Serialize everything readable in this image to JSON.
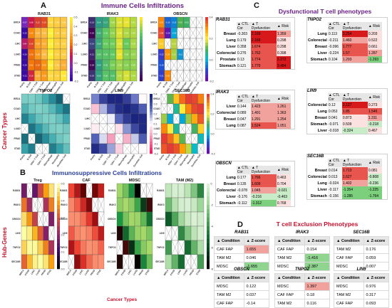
{
  "labels": {
    "A": "A",
    "B": "B",
    "C": "C",
    "D": "D",
    "immune_title": "Immune Cells Infiltrations",
    "immunosuppressive_title": "Immunosuppressive Cells Infiltrations",
    "dysfunctional_title": "Dysfunctional T cell phenotypes",
    "exclusion_title": "T cell Exclusion Phenotypes",
    "cancer_types_side": "Cancer Types",
    "hub_genes_side": "Hub-Genes",
    "cancer_types_bottom": "Cancer Types"
  },
  "colors": {
    "accent_red": "#c8102e",
    "title_blue": "#2a3f9a",
    "title_purple": "#6a1f8a",
    "cell_red": "#e3262a",
    "cell_green": "#7ccf7c",
    "header_gray": "#e6e6e6"
  },
  "chart_data": [
    {
      "type": "heatmap",
      "title": "RAB31",
      "rows": [
        "BRCA",
        "COAD",
        "LIHC",
        "LUAD",
        "PRAD",
        "STAD"
      ],
      "cols": [
        "Purity",
        "B Cell",
        "CD8+ T Cell",
        "CD4+ T Cell",
        "Macrophage",
        "Neutrophil",
        "Dendritic Cell"
      ],
      "values": [
        [
          -0.07,
          0.08,
          0.13,
          0.15,
          0.43,
          0.4,
          0.38
        ],
        [
          -0.25,
          0.24,
          0.33,
          0.35,
          0.51,
          0.4,
          0.4
        ],
        [
          0.04,
          0.14,
          0.29,
          0.32,
          0.55,
          0.41,
          0.41
        ],
        [
          -0.2,
          0.2,
          0.28,
          0.35,
          0.5,
          0.41,
          0.4
        ],
        [
          -0.25,
          0.21,
          0.19,
          0.26,
          0.5,
          0.38,
          0.32
        ],
        [
          -0.21,
          0.1,
          0.32,
          0.28,
          0.44,
          0.41,
          0.48
        ]
      ],
      "colorscale": "plasma-warm",
      "ticks": [
        "0.5",
        "0.4",
        "0.3",
        "0.2",
        "0.1",
        "0.0",
        "-0.1",
        "-0.2"
      ]
    },
    {
      "type": "heatmap",
      "title": "IRAK3",
      "rows": [
        "BRCA",
        "COAD",
        "LIHC",
        "LUAD",
        "PRAD",
        "STAD"
      ],
      "cols": [
        "Purity",
        "B Cell",
        "CD8+ T Cell",
        "CD4+ T Cell",
        "Macrophage",
        "Neutrophil",
        "Dendritic Cell"
      ],
      "values": [
        [
          -0.19,
          0.14,
          0.17,
          0.38,
          0.46,
          0.47,
          0.41
        ],
        [
          -0.3,
          0.2,
          0.3,
          0.36,
          0.46,
          0.4,
          0.4
        ],
        [
          -0.14,
          0.18,
          0.31,
          0.32,
          0.46,
          0.31,
          0.39
        ],
        [
          -0.21,
          0.26,
          0.28,
          0.3,
          0.47,
          0.35,
          0.37
        ],
        [
          -0.28,
          0.15,
          0.26,
          0.33,
          0.38,
          0.35,
          0.36
        ],
        [
          -0.18,
          0.16,
          0.28,
          0.26,
          0.41,
          0.45,
          0.4
        ]
      ],
      "colorscale": "viridis"
    },
    {
      "type": "heatmap",
      "title": "OBSCN",
      "rows": [
        "BRCA",
        "COAD",
        "LIHC",
        "LUAD",
        "PRAD",
        "STAD"
      ],
      "cols": [
        "Purity",
        "B Cell",
        "CD8+ T Cell",
        "CD4+ T Cell",
        "Macrophage",
        "Neutrophil",
        "Dendritic Cell"
      ],
      "values": [
        [
          0.3,
          -0.16,
          -0.13,
          0.05,
          0.03,
          null,
          null
        ],
        [
          0.38,
          -0.28,
          -0.09,
          null,
          null,
          null,
          null
        ],
        [
          0.21,
          null,
          0.12,
          null,
          null,
          null,
          null
        ],
        [
          -0.22,
          0.29,
          0.11,
          -0.11,
          null,
          null,
          null
        ],
        [
          -0.18,
          null,
          null,
          null,
          null,
          null,
          null
        ],
        [
          -0.21,
          0.3,
          null,
          null,
          null,
          null,
          null
        ]
      ],
      "colorscale": "rainbow",
      "ticks": [
        "0.4",
        "0.2",
        "0.0",
        "-0.2"
      ]
    },
    {
      "type": "heatmap",
      "title": "TNPO2",
      "rows": [
        "BRCA",
        "COAD",
        "LIHC",
        "LUAD",
        "PRAD",
        "STAD"
      ],
      "cols": [
        "Purity",
        "B Cell",
        "CD8+ T Cell",
        "CD4+ T Cell",
        "Macrophage",
        "Neutrophil",
        "Dendritic Cell"
      ],
      "colorscale": "teal"
    },
    {
      "type": "heatmap",
      "title": "LIN9",
      "rows": [
        "BRCA",
        "COAD",
        "LIHC",
        "LUAD",
        "PRAD",
        "STAD"
      ],
      "cols": [
        "Purity",
        "B Cell",
        "CD8+ T Cell",
        "CD4+ T Cell",
        "Macrophage",
        "Neutrophil",
        "Dendritic Cell"
      ],
      "colorscale": "pink-navy",
      "ticks": [
        "0.4",
        "0.3",
        "0.2",
        "0.1",
        "0.0",
        "-0.1",
        "-0.2"
      ]
    },
    {
      "type": "heatmap",
      "title": "SEC16B",
      "rows": [
        "BRCA",
        "COAD",
        "LIHC",
        "LUAD",
        "PRAD",
        "STAD"
      ],
      "cols": [
        "Purity",
        "B Cell",
        "CD8+ T Cell",
        "CD4+ T Cell",
        "Macrophage",
        "Neutrophil",
        "Dendritic Cell"
      ],
      "colorscale": "rainbow",
      "ticks": [
        "0.4",
        "0.2",
        "0.0",
        "-0.2"
      ]
    },
    {
      "type": "heatmap",
      "title": "Treg",
      "rows": [
        "RAB31",
        "IRAK3",
        "OBSCN",
        "LIN9",
        "TNPO2",
        "SEC16B"
      ],
      "cols": [
        "BRCA",
        "COAD",
        "LIHC",
        "LUAD",
        "PRAD",
        "STAD"
      ],
      "colorscale": "inferno",
      "ticks": [
        "0.5",
        "0.4",
        "0.3",
        "0.2",
        "0.1",
        "0.0"
      ]
    },
    {
      "type": "heatmap",
      "title": "CAF",
      "rows": [
        "RAB31",
        "IRAK3",
        "OBSCN",
        "LIN9",
        "TNPO2",
        "SEC16B"
      ],
      "cols": [
        "BRCA",
        "COAD",
        "LIHC",
        "LUAD",
        "PRAD",
        "STAD"
      ],
      "colorscale": "reds"
    },
    {
      "type": "heatmap",
      "title": "MDSC",
      "rows": [
        "RAB31",
        "IRAK3",
        "OBSCN",
        "LIN9",
        "TNPO2",
        "SEC16B"
      ],
      "cols": [
        "BRCA",
        "COAD",
        "LIHC",
        "LUAD",
        "PRAD",
        "STAD"
      ],
      "colorscale": "red-green"
    },
    {
      "type": "heatmap",
      "title": "TAM (M2)",
      "rows": [
        "RAB31",
        "IRAK3",
        "OBSCN",
        "LIN9",
        "TNPO2",
        "SEC16B"
      ],
      "cols": [
        "BRCA",
        "COAD",
        "LIHC",
        "LUAD",
        "PRAD",
        "STAD"
      ],
      "colorscale": "greens",
      "ticks": [
        "0",
        "-2",
        "-4",
        "-6",
        "-8"
      ]
    }
  ],
  "dysfunction": {
    "headers": [
      "CTL Cor",
      "T Dysfunction",
      "Risk"
    ],
    "cards": [
      {
        "gene": "RAB31",
        "rows": [
          [
            "Breast",
            "-0.303",
            "2.169",
            "1.359"
          ],
          [
            "Lung",
            "0.179",
            "2.169",
            "0.298"
          ],
          [
            "Liver",
            "0.358",
            "1.674",
            "0.298"
          ],
          [
            "Colorectal",
            "0.276",
            "1.762",
            "0.398"
          ],
          [
            "Prostate",
            "0.13",
            "1.774",
            "2.272"
          ],
          [
            "Stomach",
            "0.121",
            "1.779",
            "3.484"
          ]
        ]
      },
      {
        "gene": "TNPO2",
        "rows": [
          [
            "Lung",
            "0.113",
            "3.254",
            "0.203"
          ],
          [
            "Colorectal",
            "-0.211",
            "1.460",
            "0.522"
          ],
          [
            "Breast",
            "-0.096",
            "1.777",
            "0.661"
          ],
          [
            "Liver",
            "-0.224",
            "1.57",
            "1.287"
          ],
          [
            "Stomach",
            "0.104",
            "1.293",
            "-1.293"
          ]
        ]
      },
      {
        "gene": "IRAK3",
        "rows": [
          [
            "Liver",
            "0.144",
            "1.423",
            "1.261"
          ],
          [
            "Colorectal",
            "0.089",
            "1.491",
            "1.363"
          ],
          [
            "Breast",
            "0.047",
            "1.291",
            "1.254"
          ],
          [
            "Lung",
            "0.087",
            "1.524",
            "1.051"
          ]
        ]
      },
      {
        "gene": "LIN9",
        "rows": [
          [
            "Colorectal",
            "0.12",
            "2.127",
            "0.273"
          ],
          [
            "Lung",
            "0.053",
            "1.85",
            "1.546"
          ],
          [
            "Breast",
            "0.041",
            "0.873",
            "1.311"
          ],
          [
            "Stomach",
            "-0.071",
            "0.509",
            "-0.218"
          ],
          [
            "Liver",
            "-0.018",
            "-0.324",
            "0.467"
          ]
        ]
      },
      {
        "gene": "OBSCN",
        "rows": [
          [
            "Lung",
            "0.177",
            "1.766",
            "0.463"
          ],
          [
            "Breast",
            "0.135",
            "1.609",
            "0.704"
          ],
          [
            "Colorectal",
            "-0.078",
            "1.045",
            "-0.021"
          ],
          [
            "Liver",
            "-0.176",
            "-0.216",
            "-0.463"
          ],
          [
            "Stomach",
            "-0.112",
            "-1.312",
            "0.768"
          ]
        ]
      },
      {
        "gene": "SEC16B",
        "rows": [
          [
            "Breast",
            "0.014",
            "1.713",
            "0.081"
          ],
          [
            "Colorectal",
            "0.013",
            "1.627",
            "-0.808"
          ],
          [
            "Lung",
            "-0.024",
            "1.402",
            "-0.236"
          ],
          [
            "Liver",
            "-0.117",
            "-1.354",
            "-1.225"
          ],
          [
            "Stomach",
            "-0.156",
            "-1.285",
            "-1.764"
          ]
        ]
      }
    ]
  },
  "exclusion": {
    "headers": [
      "Condition",
      "Z-score"
    ],
    "tables": [
      {
        "gene": "RAB31",
        "rows": [
          [
            "CAF FAP",
            "1.655"
          ],
          [
            "TAM M2",
            "0.046"
          ],
          [
            "MDSC",
            "-1.655"
          ]
        ]
      },
      {
        "gene": "IRAK3",
        "rows": [
          [
            "CAF FAP",
            "0.154"
          ],
          [
            "TAM M2",
            "-1.416"
          ],
          [
            "MDSC",
            "-2.387"
          ]
        ]
      },
      {
        "gene": "SEC16B",
        "rows": [
          [
            "TAM M2",
            "0.176"
          ],
          [
            "CAF FAP",
            "0.059"
          ],
          [
            "MDSC",
            "0.007"
          ]
        ]
      },
      {
        "gene": "OBSCN",
        "rows": [
          [
            "MDSC",
            "0.122"
          ],
          [
            "TAM M2",
            "0.037"
          ],
          [
            "CAF FAP",
            "-0.14"
          ]
        ]
      },
      {
        "gene": "TNPO2",
        "rows": [
          [
            "MDSC",
            "1.397"
          ],
          [
            "CAF FAP",
            "0.18"
          ],
          [
            "TAM M2",
            "0.116"
          ]
        ]
      },
      {
        "gene": "LIN9",
        "rows": [
          [
            "MDSC",
            "0.976"
          ],
          [
            "TAM M2",
            "0.317"
          ],
          [
            "CAF FAP",
            "0.093"
          ]
        ]
      }
    ]
  }
}
